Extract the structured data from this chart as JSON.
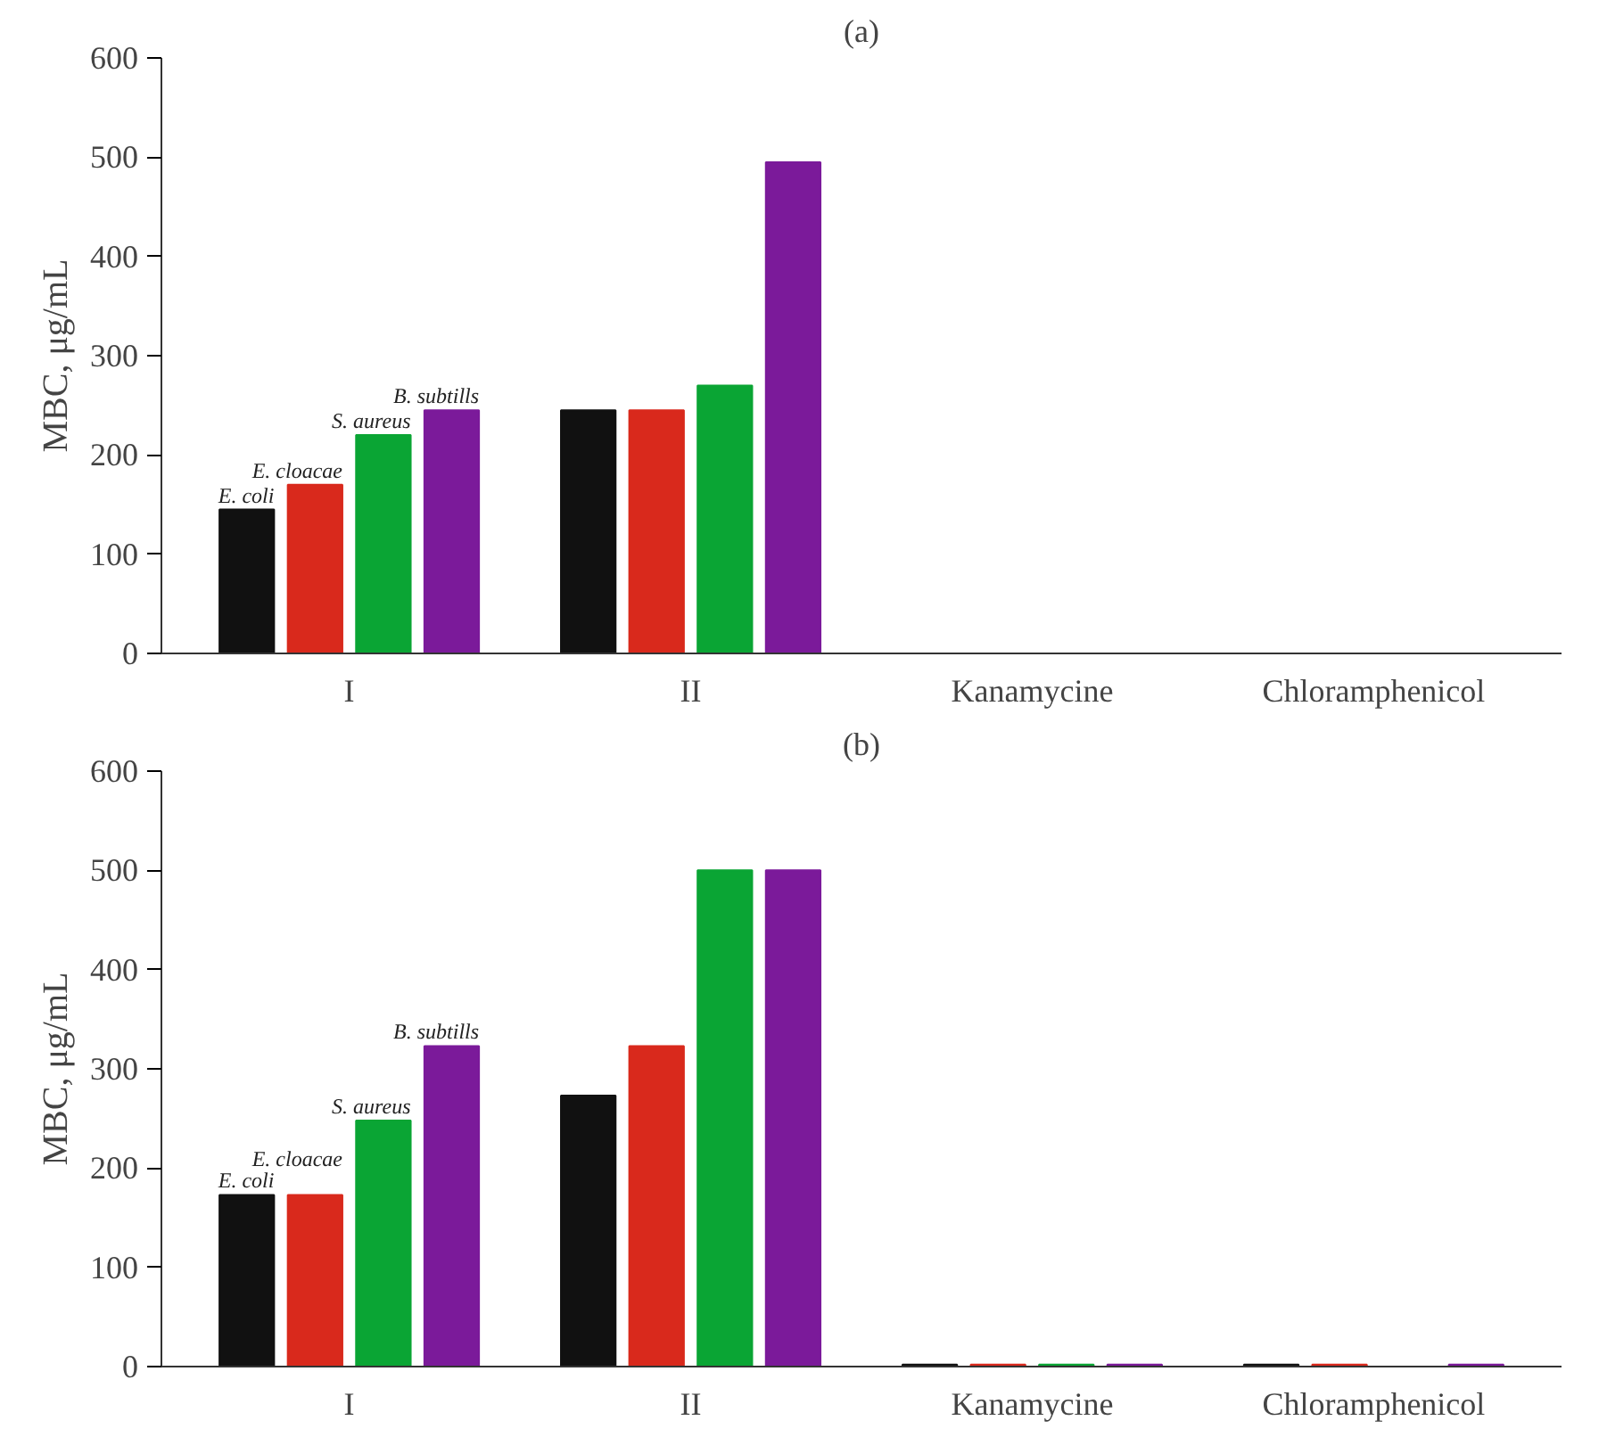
{
  "chart_data": [
    {
      "type": "bar",
      "title": "(a)",
      "ylabel": "MBC, μg/mL",
      "categories": [
        "I",
        "II",
        "Kanamycine",
        "Chloramphenicol"
      ],
      "ylim": [
        0,
        600
      ],
      "yticks": [
        0,
        100,
        200,
        300,
        400,
        500,
        600
      ],
      "grid": false,
      "series": [
        {
          "name": "E. coli",
          "color": "#111111",
          "values": [
            145,
            245,
            null,
            null
          ]
        },
        {
          "name": "E. cloacae",
          "color": "#d9291c",
          "values": [
            170,
            245,
            null,
            null
          ]
        },
        {
          "name": "S. aureus",
          "color": "#0aa534",
          "values": [
            220,
            270,
            null,
            null
          ]
        },
        {
          "name": "B. subtills",
          "color": "#7b1a9a",
          "values": [
            245,
            495,
            null,
            null
          ]
        }
      ]
    },
    {
      "type": "bar",
      "title": "(b)",
      "ylabel": "MBC, μg/mL",
      "categories": [
        "I",
        "II",
        "Kanamycine",
        "Chloramphenicol"
      ],
      "ylim": [
        0,
        600
      ],
      "yticks": [
        0,
        100,
        200,
        300,
        400,
        500,
        600
      ],
      "grid": false,
      "series": [
        {
          "name": "E. coli",
          "color": "#111111",
          "values": [
            173,
            273,
            2,
            2
          ]
        },
        {
          "name": "E. cloacae",
          "color": "#d9291c",
          "values": [
            173,
            323,
            2,
            2
          ]
        },
        {
          "name": "S. aureus",
          "color": "#0aa534",
          "values": [
            248,
            500,
            2,
            null
          ]
        },
        {
          "name": "B. subtills",
          "color": "#7b1a9a",
          "values": [
            323,
            500,
            2,
            2
          ]
        }
      ]
    }
  ]
}
